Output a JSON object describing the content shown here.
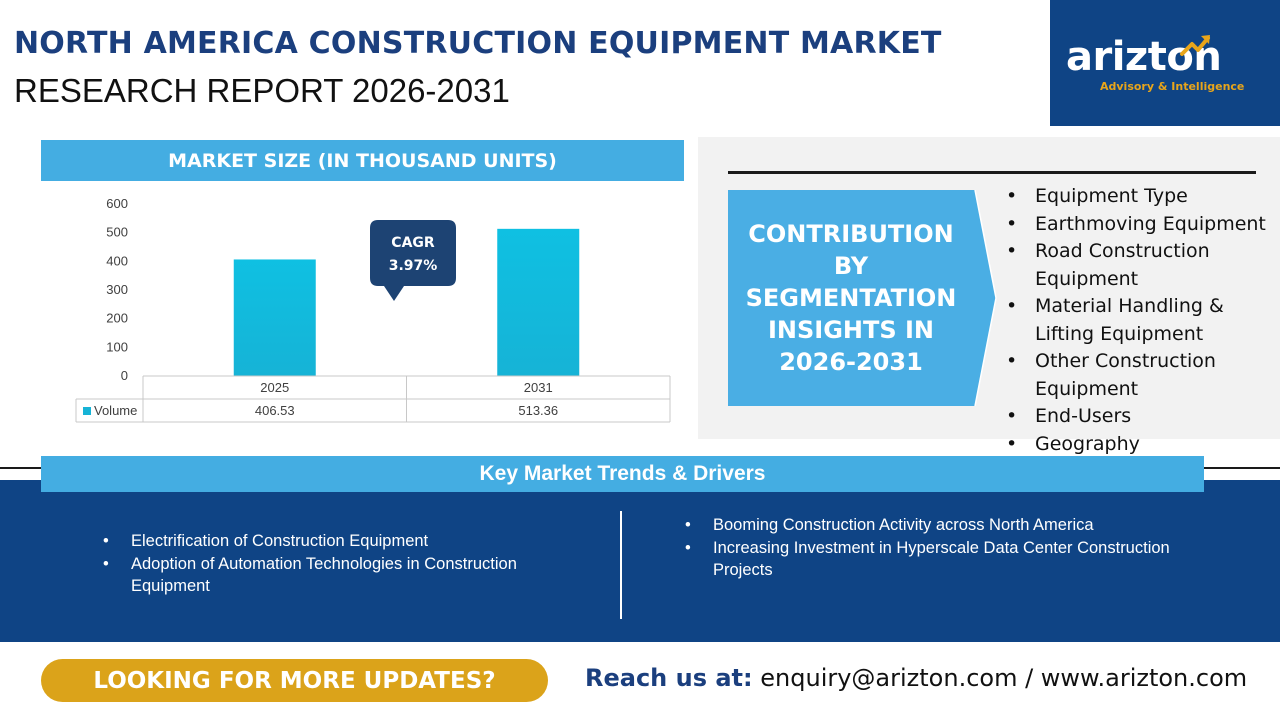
{
  "header": {
    "title_line1": "NORTH AMERICA CONSTRUCTION EQUIPMENT MARKET",
    "title_line2": "RESEARCH REPORT 2026-2031"
  },
  "logo": {
    "word_prefix": "arizt",
    "word_o": "o",
    "word_suffix": "n",
    "tagline": "Advisory & Intelligence",
    "icon": "growth-arrow-icon",
    "colors": {
      "background": "#0f4485",
      "accent": "#e8a51a"
    }
  },
  "chart_section": {
    "heading": "MARKET SIZE (IN THOUSAND UNITS)"
  },
  "chart_data": {
    "type": "bar",
    "categories": [
      "2025",
      "2031"
    ],
    "series": [
      {
        "name": "Volume",
        "values": [
          406.53,
          513.36
        ],
        "value_labels": [
          "406.53",
          "513.36"
        ],
        "color": "#16b3d6"
      }
    ],
    "ylim": [
      0,
      600
    ],
    "yticks": [
      0,
      100,
      200,
      300,
      400,
      500,
      600
    ],
    "grid": false,
    "legend": "data-table",
    "annotation": {
      "line1": "CAGR",
      "line2": "3.97%"
    }
  },
  "segmentation": {
    "box_lines": [
      "CONTRIBUTION",
      "BY",
      "SEGMENTATION",
      "INSIGHTS IN",
      "2026-2031"
    ],
    "items": [
      "Equipment Type",
      "Earthmoving Equipment",
      "Road Construction Equipment",
      "Material Handling & Lifting Equipment",
      "Other Construction Equipment",
      "End-Users",
      "Geography"
    ]
  },
  "trends": {
    "heading": "Key Market Trends & Drivers",
    "left": [
      "Electrification of Construction Equipment",
      "Adoption of Automation Technologies in Construction Equipment"
    ],
    "right": [
      "Booming Construction Activity across North America",
      "Increasing Investment in Hyperscale Data Center Construction Projects"
    ]
  },
  "footer": {
    "cta": "LOOKING FOR MORE UPDATES?",
    "contact_label": "Reach us at:",
    "contact_value": "enquiry@arizton.com / www.arizton.com"
  }
}
